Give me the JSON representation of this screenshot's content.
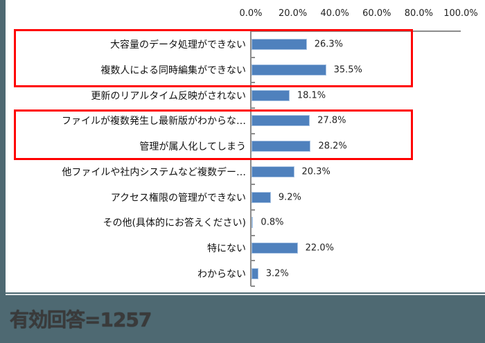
{
  "chart_data": {
    "type": "bar",
    "orientation": "horizontal",
    "title": "",
    "xlabel": "",
    "ylabel": "",
    "xlim": [
      0,
      100
    ],
    "x_ticks": [
      "0.0%",
      "20.0%",
      "40.0%",
      "60.0%",
      "80.0%",
      "100.0%"
    ],
    "axis_position": "top",
    "grid": false,
    "legend": null,
    "categories": [
      "大容量のデータ処理ができない",
      "複数人による同時編集ができない",
      "更新のリアルタイム反映がされない",
      "ファイルが複数発生し最新版がわからな…",
      "管理が属人化してしまう",
      "他ファイルや社内システムなど複数デー…",
      "アクセス権限の管理ができない",
      "その他(具体的にお答えください)",
      "特にない",
      "わからない"
    ],
    "values": [
      26.3,
      35.5,
      18.1,
      27.8,
      28.2,
      20.3,
      9.2,
      0.8,
      22.0,
      3.2
    ],
    "value_labels": [
      "26.3%",
      "35.5%",
      "18.1%",
      "27.8%",
      "28.2%",
      "20.3%",
      "9.2%",
      "0.8%",
      "22.0%",
      "3.2%"
    ],
    "highlight_groups": [
      [
        0,
        1
      ],
      [
        3,
        4
      ]
    ],
    "annotations": [
      "有効回答=1257"
    ]
  },
  "colors": {
    "bar": "#4f81bd",
    "highlight_box": "#ff0000",
    "background": "#4e6972",
    "panel": "#ffffff"
  },
  "footer": {
    "text": "有効回答=1257"
  }
}
